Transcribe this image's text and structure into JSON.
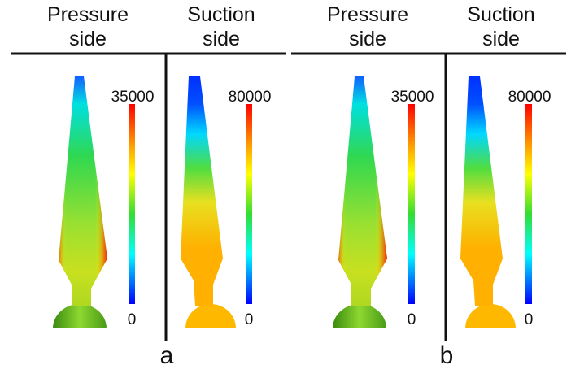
{
  "panels": [
    {
      "label": "a",
      "plots": [
        {
          "title": [
            "Pressure",
            "side"
          ],
          "colorbar": {
            "max": 35000,
            "min": 0
          }
        },
        {
          "title": [
            "Suction",
            "side"
          ],
          "colorbar": {
            "max": 80000,
            "min": 0
          }
        }
      ]
    },
    {
      "label": "b",
      "plots": [
        {
          "title": [
            "Pressure",
            "side"
          ],
          "colorbar": {
            "max": 35000,
            "min": 0
          }
        },
        {
          "title": [
            "Suction",
            "side"
          ],
          "colorbar": {
            "max": 80000,
            "min": 0
          }
        }
      ]
    }
  ]
}
